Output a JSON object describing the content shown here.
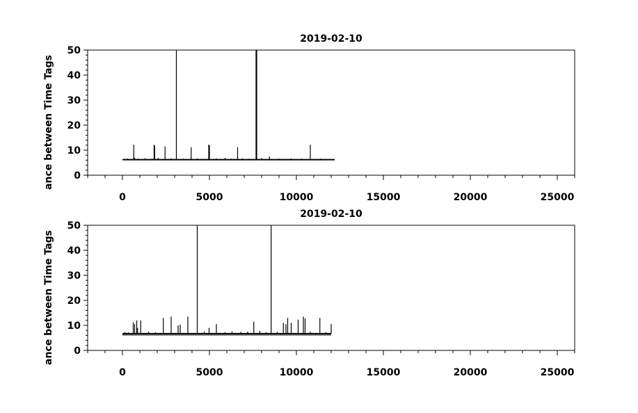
{
  "chart_data": [
    {
      "type": "line",
      "title": "2019-02-10",
      "xlabel": "",
      "ylabel": "ance between Time Tags",
      "xlim": [
        -2000,
        26000
      ],
      "ylim": [
        0,
        50
      ],
      "x_ticks": [
        "0",
        "5000",
        "10000",
        "15000",
        "20000",
        "25000"
      ],
      "y_ticks": [
        "0",
        "10",
        "20",
        "30",
        "40",
        "50"
      ],
      "baseline": 6.2,
      "x_range": [
        0,
        12200
      ],
      "spikes": [
        {
          "x": 100,
          "y": 6.5
        },
        {
          "x": 300,
          "y": 6.7
        },
        {
          "x": 650,
          "y": 12.2
        },
        {
          "x": 700,
          "y": 7.0
        },
        {
          "x": 900,
          "y": 6.6
        },
        {
          "x": 1300,
          "y": 6.8
        },
        {
          "x": 1700,
          "y": 6.6
        },
        {
          "x": 1820,
          "y": 12.2
        },
        {
          "x": 1850,
          "y": 11.8
        },
        {
          "x": 2050,
          "y": 6.9
        },
        {
          "x": 2450,
          "y": 11.5
        },
        {
          "x": 2800,
          "y": 6.7
        },
        {
          "x": 3100,
          "y": 50
        },
        {
          "x": 3500,
          "y": 6.6
        },
        {
          "x": 3950,
          "y": 11.2
        },
        {
          "x": 4300,
          "y": 6.7
        },
        {
          "x": 4960,
          "y": 12.2
        },
        {
          "x": 5000,
          "y": 12.0
        },
        {
          "x": 5400,
          "y": 6.7
        },
        {
          "x": 5900,
          "y": 6.9
        },
        {
          "x": 6250,
          "y": 6.6
        },
        {
          "x": 6620,
          "y": 11.2
        },
        {
          "x": 6900,
          "y": 6.7
        },
        {
          "x": 7300,
          "y": 6.6
        },
        {
          "x": 7680,
          "y": 50
        },
        {
          "x": 7720,
          "y": 50
        },
        {
          "x": 8000,
          "y": 6.8
        },
        {
          "x": 8450,
          "y": 7.5
        },
        {
          "x": 9000,
          "y": 6.6
        },
        {
          "x": 9700,
          "y": 6.7
        },
        {
          "x": 10300,
          "y": 6.6
        },
        {
          "x": 10800,
          "y": 12.2
        },
        {
          "x": 11400,
          "y": 6.6
        }
      ]
    },
    {
      "type": "line",
      "title": "2019-02-10",
      "xlabel": "",
      "ylabel": "ance between Time Tags",
      "xlim": [
        -2000,
        26000
      ],
      "ylim": [
        0,
        50
      ],
      "x_ticks": [
        "0",
        "5000",
        "10000",
        "15000",
        "20000",
        "25000"
      ],
      "y_ticks": [
        "0",
        "10",
        "20",
        "30",
        "40",
        "50"
      ],
      "baseline": 6.7,
      "x_range": [
        0,
        12000
      ],
      "spikes": [
        {
          "x": 150,
          "y": 7.3
        },
        {
          "x": 350,
          "y": 7.2
        },
        {
          "x": 620,
          "y": 11.2
        },
        {
          "x": 700,
          "y": 10.5
        },
        {
          "x": 820,
          "y": 12.0
        },
        {
          "x": 870,
          "y": 9.0
        },
        {
          "x": 1050,
          "y": 12.0
        },
        {
          "x": 1500,
          "y": 7.5
        },
        {
          "x": 1900,
          "y": 7.2
        },
        {
          "x": 2350,
          "y": 13.0
        },
        {
          "x": 2800,
          "y": 13.5
        },
        {
          "x": 3200,
          "y": 10.0
        },
        {
          "x": 3320,
          "y": 10.3
        },
        {
          "x": 3760,
          "y": 13.5
        },
        {
          "x": 4300,
          "y": 50
        },
        {
          "x": 4700,
          "y": 7.5
        },
        {
          "x": 4980,
          "y": 9.0
        },
        {
          "x": 5400,
          "y": 10.5
        },
        {
          "x": 5900,
          "y": 7.3
        },
        {
          "x": 6300,
          "y": 7.6
        },
        {
          "x": 6800,
          "y": 7.4
        },
        {
          "x": 7200,
          "y": 7.5
        },
        {
          "x": 7550,
          "y": 11.5
        },
        {
          "x": 7900,
          "y": 7.8
        },
        {
          "x": 8250,
          "y": 7.3
        },
        {
          "x": 8550,
          "y": 50
        },
        {
          "x": 8900,
          "y": 7.4
        },
        {
          "x": 9250,
          "y": 11.0
        },
        {
          "x": 9400,
          "y": 10.5
        },
        {
          "x": 9500,
          "y": 13.0
        },
        {
          "x": 9700,
          "y": 11.0
        },
        {
          "x": 10100,
          "y": 12.3
        },
        {
          "x": 10400,
          "y": 13.5
        },
        {
          "x": 10500,
          "y": 12.8
        },
        {
          "x": 10800,
          "y": 7.5
        },
        {
          "x": 11350,
          "y": 13.0
        },
        {
          "x": 11700,
          "y": 7.3
        },
        {
          "x": 12000,
          "y": 10.5
        }
      ]
    }
  ]
}
